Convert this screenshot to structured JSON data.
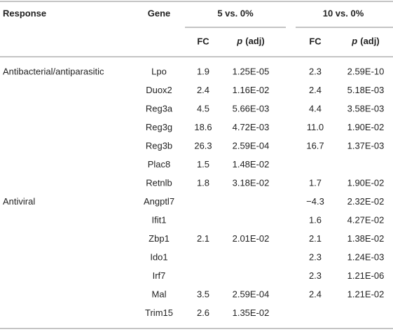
{
  "table": {
    "header": {
      "response": "Response",
      "gene": "Gene",
      "groups": [
        "5 vs. 0%",
        "10 vs. 0%"
      ],
      "sub": [
        {
          "fc": "FC",
          "p": "p",
          "adj": "(adj)"
        },
        {
          "fc": "FC",
          "p": "p",
          "adj": "(adj)"
        }
      ]
    },
    "rows": [
      [
        "Antibacterial/antiparasitic",
        "Lpo",
        "1.9",
        "1.25E-05",
        "2.3",
        "2.59E-10"
      ],
      [
        null,
        "Duox2",
        "2.4",
        "1.16E-02",
        "2.4",
        "5.18E-03"
      ],
      [
        null,
        "Reg3a",
        "4.5",
        "5.66E-03",
        "4.4",
        "3.58E-03"
      ],
      [
        null,
        "Reg3g",
        "18.6",
        "4.72E-03",
        "11.0",
        "1.90E-02"
      ],
      [
        null,
        "Reg3b",
        "26.3",
        "2.59E-04",
        "16.7",
        "1.37E-03"
      ],
      [
        null,
        "Plac8",
        "1.5",
        "1.48E-02",
        null,
        null
      ],
      [
        null,
        "Retnlb",
        "1.8",
        "3.18E-02",
        "1.7",
        "1.90E-02"
      ],
      [
        "Antiviral",
        "Angptl7",
        null,
        null,
        "−4.3",
        "2.32E-02"
      ],
      [
        null,
        "Ifit1",
        null,
        null,
        "1.6",
        "4.27E-02"
      ],
      [
        null,
        "Zbp1",
        "2.1",
        "2.01E-02",
        "2.1",
        "1.38E-02"
      ],
      [
        null,
        "Ido1",
        null,
        null,
        "2.3",
        "1.24E-03"
      ],
      [
        null,
        "Irf7",
        null,
        null,
        "2.3",
        "1.21E-06"
      ],
      [
        null,
        "Mal",
        "3.5",
        "2.59E-04",
        "2.4",
        "1.21E-02"
      ],
      [
        null,
        "Trim15",
        "2.6",
        "1.35E-02",
        null,
        null
      ]
    ]
  }
}
